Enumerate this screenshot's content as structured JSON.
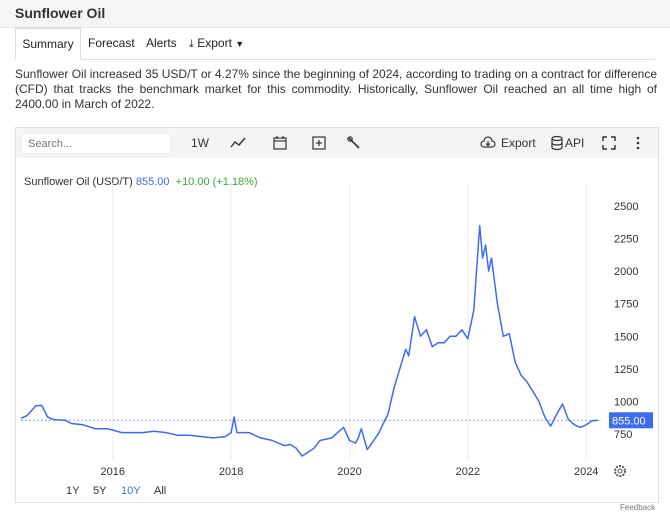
{
  "page": {
    "title": "Sunflower Oil",
    "tabs": [
      "Summary",
      "Forecast",
      "Alerts",
      "Export"
    ],
    "description": "Sunflower Oil increased 35 USD/T or 4.27% since the beginning of 2024, according to trading on a contract for difference (CFD) that tracks the benchmark market for this commodity. Historically, Sunflower Oil reached an all time high of 2400.00 in March of 2022.",
    "feedback": "Feedback"
  },
  "toolbar": {
    "search_placeholder": "Search...",
    "interval": "1W",
    "export_label": "Export",
    "api_label": "API",
    "icons": [
      "line-chart-icon",
      "calendar-icon",
      "add-icon",
      "wrench-icon",
      "cloud-download-icon",
      "database-icon",
      "expand-icon",
      "more-icon"
    ]
  },
  "legend": {
    "name": "Sunflower Oil (USD/T)",
    "price": "855.00",
    "change": "+10.00 (+1.18%)",
    "last_label": "855.00"
  },
  "ranges": [
    "1Y",
    "5Y",
    "10Y",
    "All"
  ],
  "active_range": "10Y",
  "colors": {
    "line": "#3d6cf2",
    "change": "#3aa63a",
    "label_bg": "#3d6cf2"
  },
  "chart_data": {
    "type": "line",
    "series": [
      {
        "name": "Sunflower Oil (USD/T)",
        "x": [
          2014.45,
          2014.55,
          2014.7,
          2014.8,
          2014.9,
          2015.0,
          2015.2,
          2015.3,
          2015.5,
          2015.7,
          2015.9,
          2016.0,
          2016.15,
          2016.3,
          2016.5,
          2016.7,
          2016.9,
          2017.1,
          2017.3,
          2017.5,
          2017.7,
          2017.9,
          2018.0,
          2018.05,
          2018.1,
          2018.3,
          2018.5,
          2018.7,
          2018.9,
          2019.0,
          2019.1,
          2019.2,
          2019.4,
          2019.5,
          2019.7,
          2019.8,
          2019.9,
          2020.0,
          2020.1,
          2020.15,
          2020.2,
          2020.3,
          2020.35,
          2020.5,
          2020.55,
          2020.65,
          2020.75,
          2020.85,
          2020.95,
          2021.0,
          2021.1,
          2021.2,
          2021.3,
          2021.4,
          2021.5,
          2021.6,
          2021.7,
          2021.8,
          2021.9,
          2022.0,
          2022.1,
          2022.2,
          2022.25,
          2022.3,
          2022.35,
          2022.4,
          2022.5,
          2022.6,
          2022.7,
          2022.8,
          2022.9,
          2023.0,
          2023.2,
          2023.3,
          2023.4,
          2023.5,
          2023.6,
          2023.7,
          2023.8,
          2023.9,
          2024.0,
          2024.1,
          2024.2
        ],
        "y": [
          870,
          890,
          965,
          970,
          880,
          860,
          855,
          830,
          820,
          790,
          790,
          780,
          760,
          760,
          760,
          770,
          760,
          740,
          740,
          730,
          720,
          730,
          760,
          880,
          760,
          760,
          720,
          700,
          660,
          670,
          640,
          580,
          640,
          700,
          720,
          760,
          800,
          700,
          680,
          720,
          790,
          630,
          660,
          760,
          810,
          900,
          1100,
          1250,
          1400,
          1350,
          1650,
          1500,
          1550,
          1420,
          1450,
          1450,
          1500,
          1500,
          1550,
          1480,
          1700,
          2350,
          2100,
          2200,
          2000,
          2100,
          1750,
          1500,
          1520,
          1300,
          1200,
          1150,
          1000,
          880,
          810,
          900,
          980,
          860,
          820,
          800,
          820,
          850,
          855
        ]
      }
    ],
    "xlim": [
      2014.45,
      2024.25
    ],
    "ylim": [
      550,
      2600
    ],
    "x_ticks": [
      2016,
      2018,
      2020,
      2022,
      2024
    ],
    "y_ticks": [
      750,
      1000,
      1250,
      1500,
      1750,
      2000,
      2250,
      2500
    ],
    "reference_line": 855,
    "grid": "vertical"
  }
}
